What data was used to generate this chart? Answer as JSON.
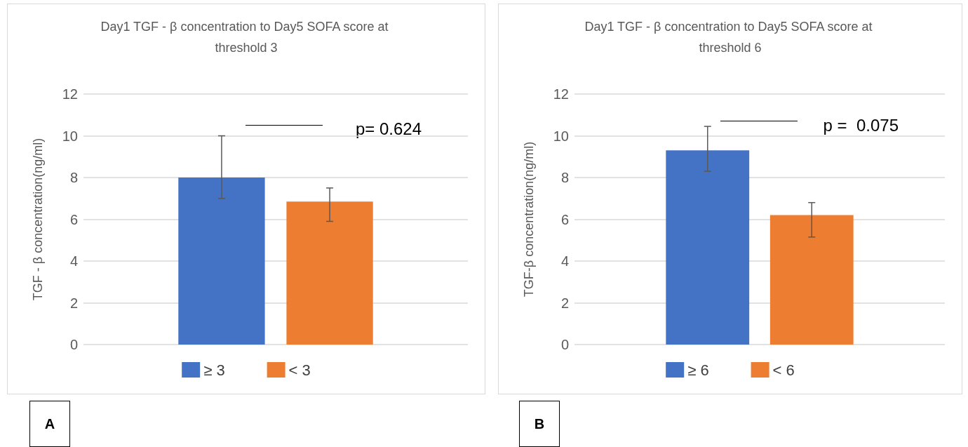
{
  "chart_data": [
    {
      "type": "bar",
      "title": "Day1 TGF - β concentration to Day5 SOFA score at threshold 3",
      "ylabel": "TGF - β concentration(ng/ml)",
      "categories": [
        null
      ],
      "series": [
        {
          "name": "≥ 3",
          "color": "#4472c4",
          "values": [
            8.0
          ],
          "errors": [
            [
              7.0,
              10.0
            ]
          ]
        },
        {
          "name": "< 3",
          "color": "#ed7d31",
          "values": [
            6.85
          ],
          "errors": [
            [
              5.9,
              7.5
            ]
          ]
        }
      ],
      "ylim": [
        0,
        12
      ],
      "yticks": [
        0,
        2,
        4,
        6,
        8,
        10,
        12
      ],
      "grid": "y",
      "legend": "bottom",
      "annotations": [
        "p= 0.624",
        "A"
      ]
    },
    {
      "type": "bar",
      "title": "Day1 TGF - β concentration to Day5 SOFA score at threshold 6",
      "ylabel": "TGF-β concentration(ng/ml)",
      "categories": [
        null
      ],
      "series": [
        {
          "name": "≥ 6",
          "color": "#4472c4",
          "values": [
            9.3
          ],
          "errors": [
            [
              8.3,
              10.45
            ]
          ]
        },
        {
          "name": "< 6",
          "color": "#ed7d31",
          "values": [
            6.2
          ],
          "errors": [
            [
              5.15,
              6.8
            ]
          ]
        }
      ],
      "ylim": [
        0,
        12
      ],
      "yticks": [
        0,
        2,
        4,
        6,
        8,
        10,
        12
      ],
      "grid": "y",
      "legend": "bottom",
      "annotations": [
        "p =  0.075",
        "B"
      ]
    }
  ]
}
